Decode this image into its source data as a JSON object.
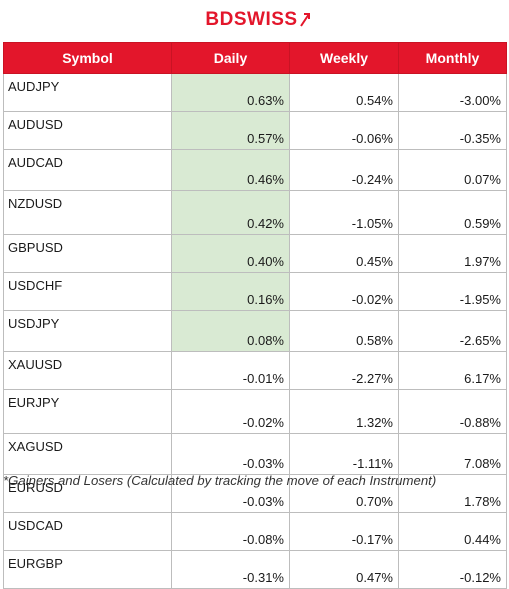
{
  "brand": {
    "logo_text": "BDSWISS",
    "logo_color": "#e3162b"
  },
  "table": {
    "headers": [
      "Symbol",
      "Daily",
      "Weekly",
      "Monthly"
    ],
    "header_color": "#e3162b",
    "gainer_highlight_color": "#d9ead3",
    "rows": [
      {
        "symbol": "AUDJPY",
        "daily": "0.63%",
        "weekly": "0.54%",
        "monthly": "-3.00%",
        "gainer": true
      },
      {
        "symbol": "AUDUSD",
        "daily": "0.57%",
        "weekly": "-0.06%",
        "monthly": "-0.35%",
        "gainer": true
      },
      {
        "symbol": "AUDCAD",
        "daily": "0.46%",
        "weekly": "-0.24%",
        "monthly": "0.07%",
        "gainer": true
      },
      {
        "symbol": "NZDUSD",
        "daily": "0.42%",
        "weekly": "-1.05%",
        "monthly": "0.59%",
        "gainer": true
      },
      {
        "symbol": "GBPUSD",
        "daily": "0.40%",
        "weekly": "0.45%",
        "monthly": "1.97%",
        "gainer": true
      },
      {
        "symbol": "USDCHF",
        "daily": "0.16%",
        "weekly": "-0.02%",
        "monthly": "-1.95%",
        "gainer": true
      },
      {
        "symbol": "USDJPY",
        "daily": "0.08%",
        "weekly": "0.58%",
        "monthly": "-2.65%",
        "gainer": true
      },
      {
        "symbol": "XAUUSD",
        "daily": "-0.01%",
        "weekly": "-2.27%",
        "monthly": "6.17%",
        "gainer": false
      },
      {
        "symbol": "EURJPY",
        "daily": "-0.02%",
        "weekly": "1.32%",
        "monthly": "-0.88%",
        "gainer": false
      },
      {
        "symbol": "XAGUSD",
        "daily": "-0.03%",
        "weekly": "-1.11%",
        "monthly": "7.08%",
        "gainer": false
      },
      {
        "symbol": "EURUSD",
        "daily": "-0.03%",
        "weekly": "0.70%",
        "monthly": "1.78%",
        "gainer": false
      },
      {
        "symbol": "USDCAD",
        "daily": "-0.08%",
        "weekly": "-0.17%",
        "monthly": "0.44%",
        "gainer": false
      },
      {
        "symbol": "EURGBP",
        "daily": "-0.31%",
        "weekly": "0.47%",
        "monthly": "-0.12%",
        "gainer": false
      }
    ]
  },
  "footnote": "*Gainers and Losers (Calculated by tracking the move of each Instrument)"
}
